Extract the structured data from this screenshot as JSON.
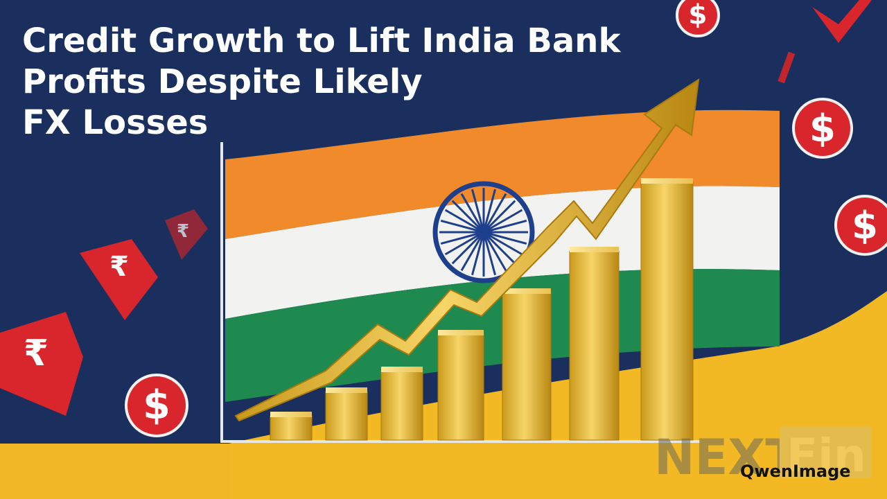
{
  "header": {
    "title_lines": [
      "Credit Growth to Lift India Bank",
      "Profits Despite Likely",
      "FX Losses"
    ]
  },
  "symbols": {
    "dollar": "$",
    "rupee": "₹"
  },
  "watermark": {
    "brand_left": "NEXT",
    "brand_right": "Fin",
    "credit": "QwenImage"
  }
}
